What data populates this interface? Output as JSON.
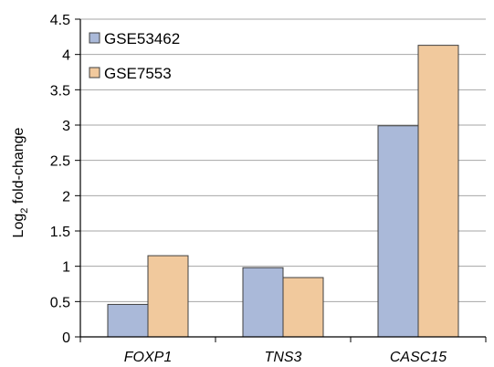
{
  "chart_data": {
    "type": "bar",
    "categories": [
      "FOXP1",
      "TNS3",
      "CASC15"
    ],
    "series": [
      {
        "name": "GSE53462",
        "color": "#aab9d9",
        "values": [
          0.46,
          0.98,
          2.99
        ]
      },
      {
        "name": "GSE7553",
        "color": "#f1c99d",
        "values": [
          1.15,
          0.84,
          4.13
        ]
      }
    ],
    "ylabel_main": "Log",
    "ylabel_sub": "2",
    "ylabel_rest": " fold-change",
    "ylim": [
      0,
      4.5
    ],
    "yticks": [
      "0",
      "0.5",
      "1",
      "1.5",
      "2",
      "2.5",
      "3",
      "3.5",
      "4",
      "4.5"
    ],
    "grid": true,
    "legend_position": "top-left"
  }
}
